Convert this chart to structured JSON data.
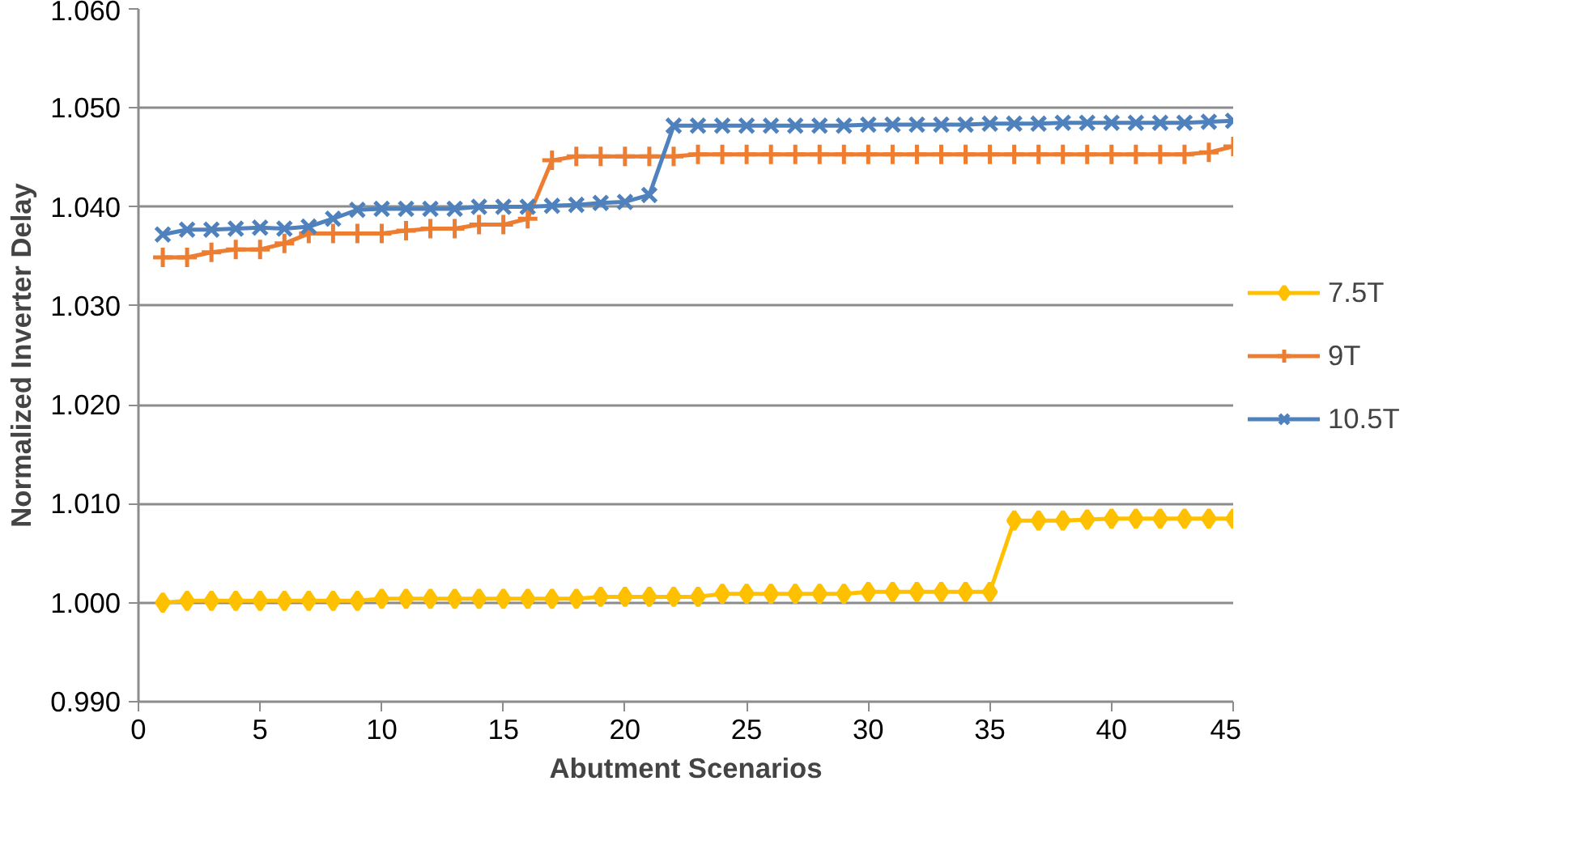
{
  "chart_data": {
    "type": "line",
    "xlabel": "Abutment Scenarios",
    "ylabel": "Normalized Inverter Delay",
    "x": [
      1,
      2,
      3,
      4,
      5,
      6,
      7,
      8,
      9,
      10,
      11,
      12,
      13,
      14,
      15,
      16,
      17,
      18,
      19,
      20,
      21,
      22,
      23,
      24,
      25,
      26,
      27,
      28,
      29,
      30,
      31,
      32,
      33,
      34,
      35,
      36,
      37,
      38,
      39,
      40,
      41,
      42,
      43,
      44,
      45
    ],
    "series": [
      {
        "name": "7.5T",
        "color": "#ffc000",
        "marker": "diamond",
        "values": [
          1.0,
          1.0002,
          1.0002,
          1.0002,
          1.0002,
          1.0002,
          1.0002,
          1.0002,
          1.0002,
          1.0004,
          1.0004,
          1.0004,
          1.0004,
          1.0004,
          1.0004,
          1.0004,
          1.0004,
          1.0004,
          1.0006,
          1.0006,
          1.0006,
          1.0006,
          1.0006,
          1.0009,
          1.0009,
          1.0009,
          1.0009,
          1.0009,
          1.0009,
          1.0011,
          1.0011,
          1.0011,
          1.0011,
          1.0011,
          1.0011,
          1.0083,
          1.0083,
          1.0083,
          1.0084,
          1.0085,
          1.0085,
          1.0085,
          1.0085,
          1.0085,
          1.0085
        ]
      },
      {
        "name": "9T",
        "color": "#ed7d31",
        "marker": "cross",
        "values": [
          1.0349,
          1.0349,
          1.0354,
          1.0357,
          1.0357,
          1.0363,
          1.0373,
          1.0373,
          1.0373,
          1.0373,
          1.0376,
          1.0378,
          1.0378,
          1.0382,
          1.0382,
          1.0388,
          1.0447,
          1.0451,
          1.0451,
          1.0451,
          1.0451,
          1.0451,
          1.0453,
          1.0453,
          1.0453,
          1.0453,
          1.0453,
          1.0453,
          1.0453,
          1.0453,
          1.0453,
          1.0453,
          1.0453,
          1.0453,
          1.0453,
          1.0453,
          1.0453,
          1.0453,
          1.0453,
          1.0453,
          1.0453,
          1.0453,
          1.0453,
          1.0455,
          1.0461
        ]
      },
      {
        "name": "10.5T",
        "color": "#4f81bd",
        "marker": "x",
        "values": [
          1.0372,
          1.0377,
          1.0377,
          1.0378,
          1.0379,
          1.0378,
          1.038,
          1.0388,
          1.0397,
          1.0398,
          1.0398,
          1.0398,
          1.0398,
          1.04,
          1.04,
          1.04,
          1.0401,
          1.0402,
          1.0404,
          1.0405,
          1.0412,
          1.0482,
          1.0482,
          1.0482,
          1.0482,
          1.0482,
          1.0482,
          1.0482,
          1.0482,
          1.0483,
          1.0483,
          1.0483,
          1.0483,
          1.0483,
          1.0484,
          1.0484,
          1.0484,
          1.0485,
          1.0485,
          1.0485,
          1.0485,
          1.0485,
          1.0485,
          1.0486,
          1.0487
        ]
      }
    ],
    "xlim": [
      0,
      45
    ],
    "xticks": [
      0,
      5,
      10,
      15,
      20,
      25,
      30,
      35,
      40,
      45
    ],
    "ylim": [
      0.99,
      1.06
    ],
    "yticks": [
      {
        "value": 0.99,
        "label": "0.990"
      },
      {
        "value": 1.0,
        "label": "1.000"
      },
      {
        "value": 1.01,
        "label": "1.010"
      },
      {
        "value": 1.02,
        "label": "1.020"
      },
      {
        "value": 1.03,
        "label": "1.030"
      },
      {
        "value": 1.04,
        "label": "1.040"
      },
      {
        "value": 1.05,
        "label": "1.050"
      },
      {
        "value": 1.06,
        "label": "1.060"
      }
    ],
    "grid": "y",
    "legend": "right",
    "line_style": "solid"
  }
}
